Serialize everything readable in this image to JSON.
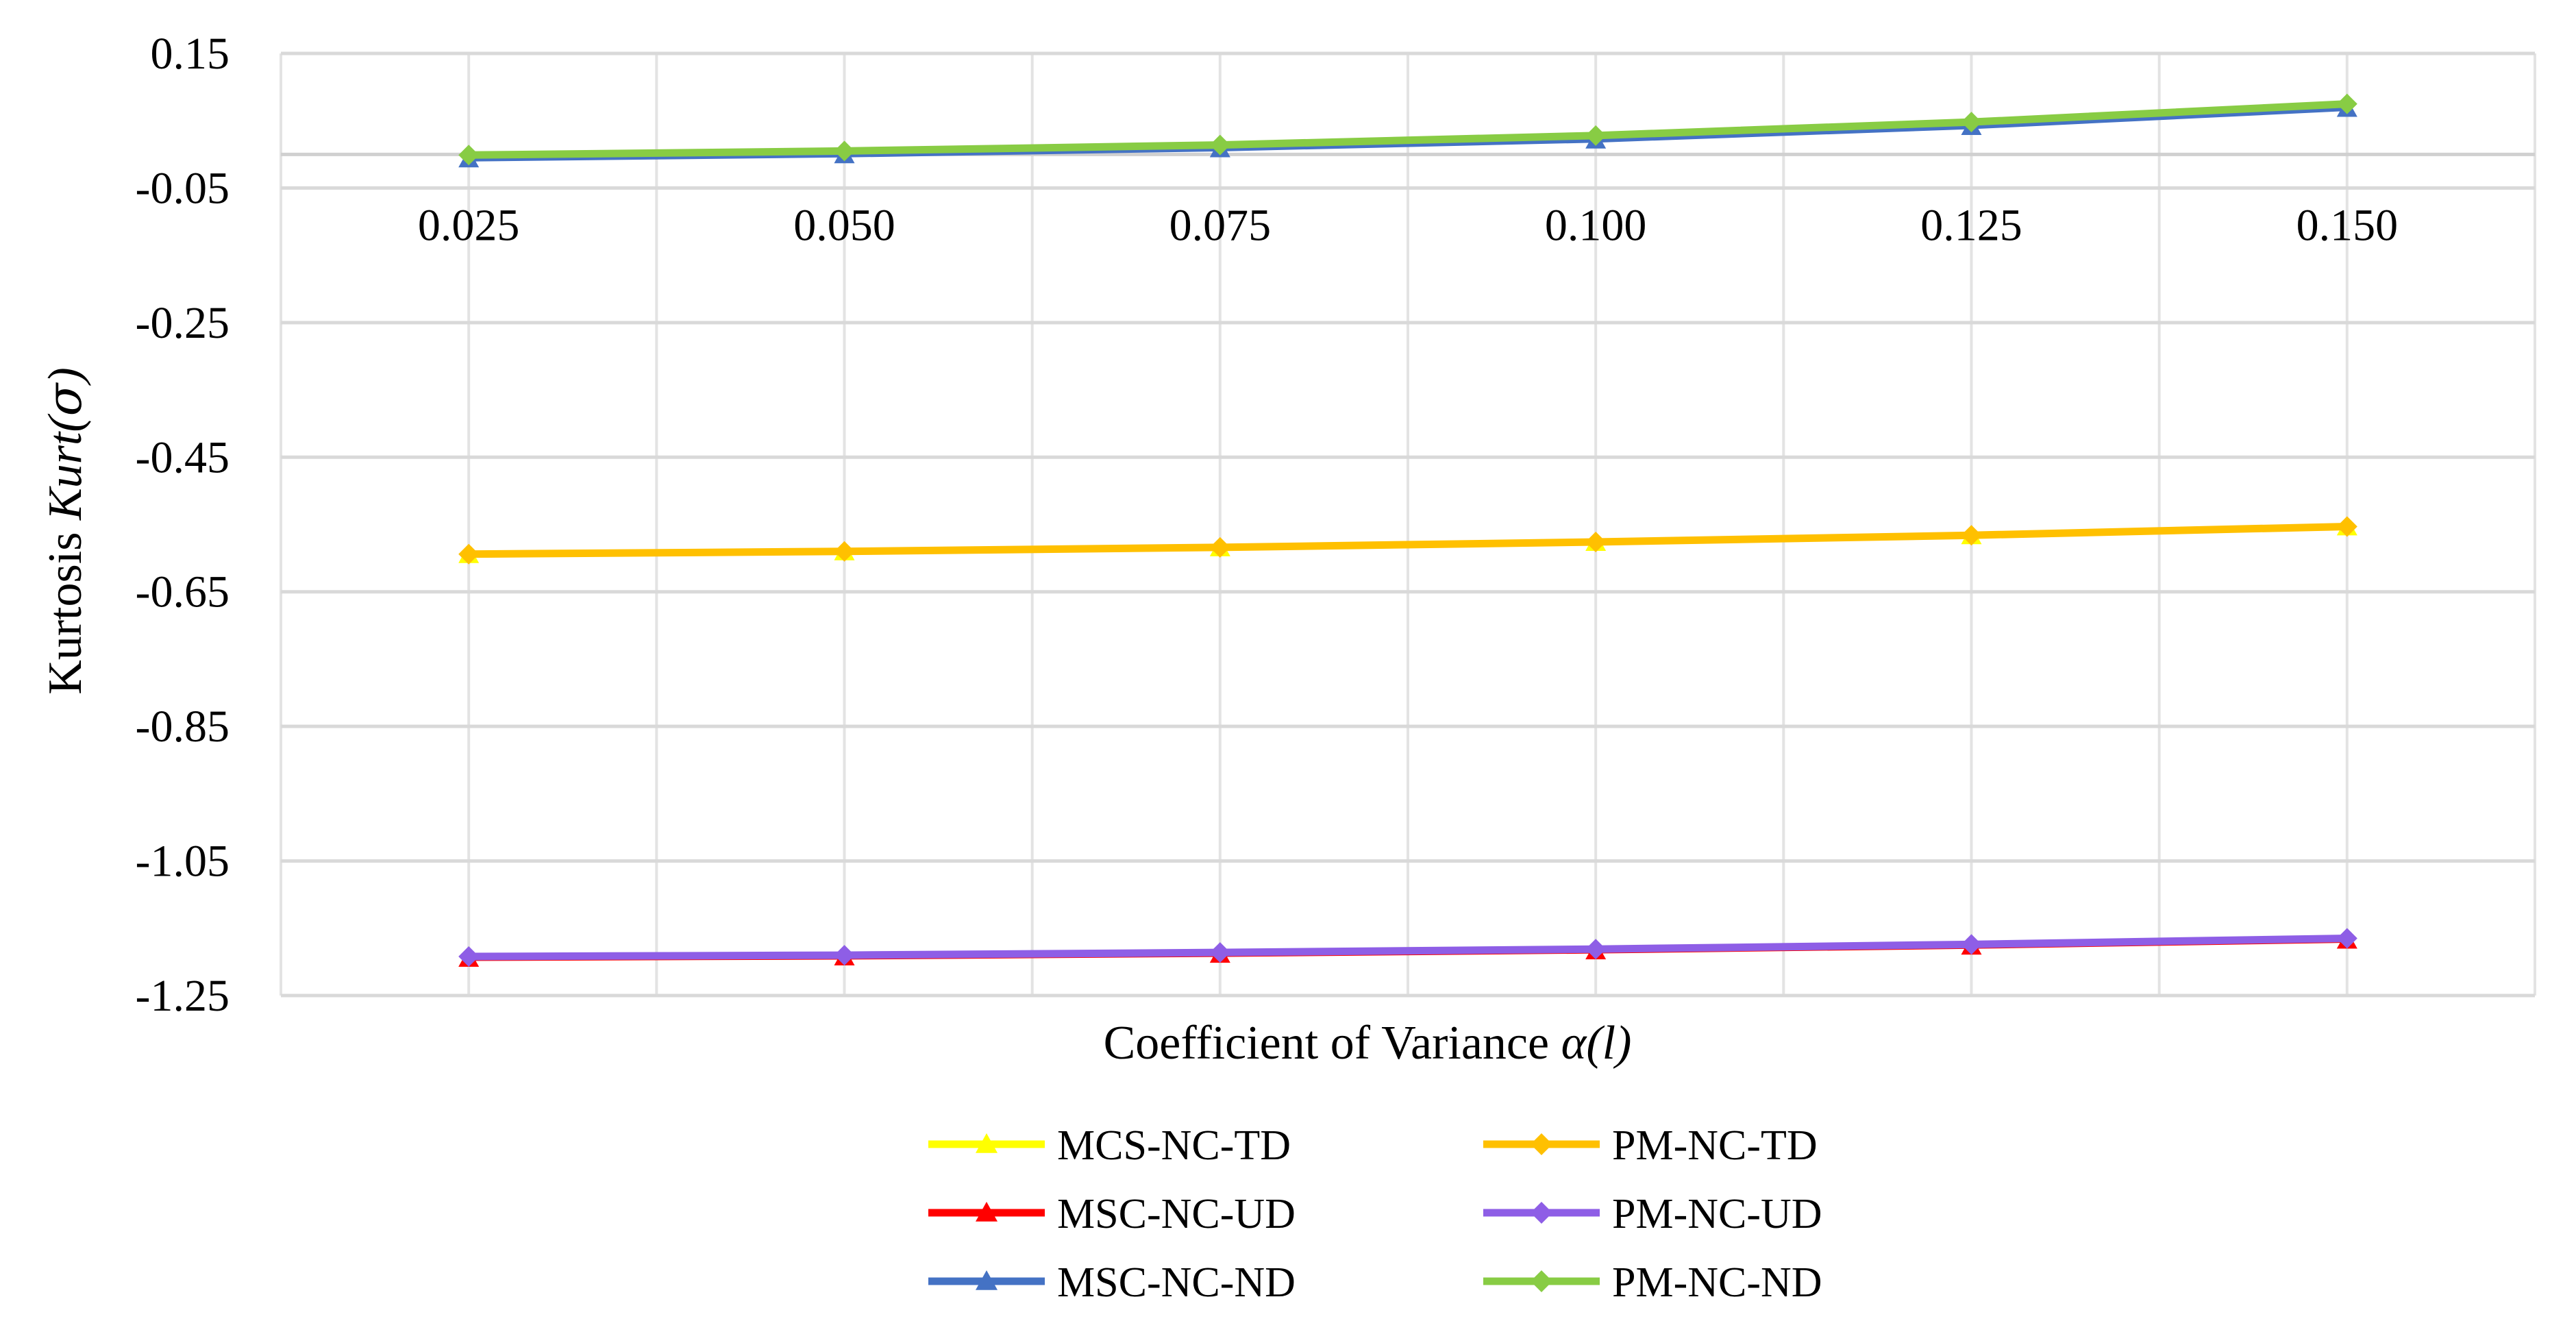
{
  "chart_data": {
    "type": "line",
    "title": "",
    "xlabel": "Coefficient of Variance ",
    "xlabel_italic": "α(l)",
    "ylabel": "Kurtosis ",
    "ylabel_italic": "Kurt(",
    "ylabel_sigma": "σ",
    "ylabel_close": ")",
    "categories": [
      "0.025",
      "0.050",
      "0.075",
      "0.100",
      "0.125",
      "0.150"
    ],
    "y_ticks": [
      "0.15",
      "-0.05",
      "-0.25",
      "-0.45",
      "-0.65",
      "-0.85",
      "-1.05",
      "-1.25"
    ],
    "y_tick_values": [
      0.15,
      -0.05,
      -0.25,
      -0.45,
      -0.65,
      -0.85,
      -1.05,
      -1.25
    ],
    "ylim": [
      -1.25,
      0.15
    ],
    "x_axis_crosses_at": 0,
    "grid": true,
    "legend_position": "bottom",
    "series": [
      {
        "name": "MCS-NC-TD",
        "color": "#ffff00",
        "marker": "triangle",
        "values": [
          -0.595,
          -0.591,
          -0.585,
          -0.577,
          -0.567,
          -0.554
        ]
      },
      {
        "name": "MSC-NC-UD",
        "color": "#ff0000",
        "marker": "triangle",
        "values": [
          -1.195,
          -1.193,
          -1.189,
          -1.184,
          -1.177,
          -1.168
        ]
      },
      {
        "name": "MSC-NC-ND",
        "color": "#4472c4",
        "marker": "triangle",
        "values": [
          -0.007,
          -0.001,
          0.008,
          0.021,
          0.041,
          0.068
        ]
      },
      {
        "name": "PM-NC-TD",
        "color": "#ffc000",
        "marker": "diamond",
        "values": [
          -0.594,
          -0.59,
          -0.584,
          -0.576,
          -0.566,
          -0.553
        ]
      },
      {
        "name": "PM-NC-UD",
        "color": "#8e5ee6",
        "marker": "diamond",
        "values": [
          -1.192,
          -1.19,
          -1.186,
          -1.181,
          -1.174,
          -1.165
        ]
      },
      {
        "name": "PM-NC-ND",
        "color": "#88cc44",
        "marker": "diamond",
        "values": [
          -0.001,
          0.005,
          0.014,
          0.028,
          0.048,
          0.075
        ]
      }
    ]
  }
}
